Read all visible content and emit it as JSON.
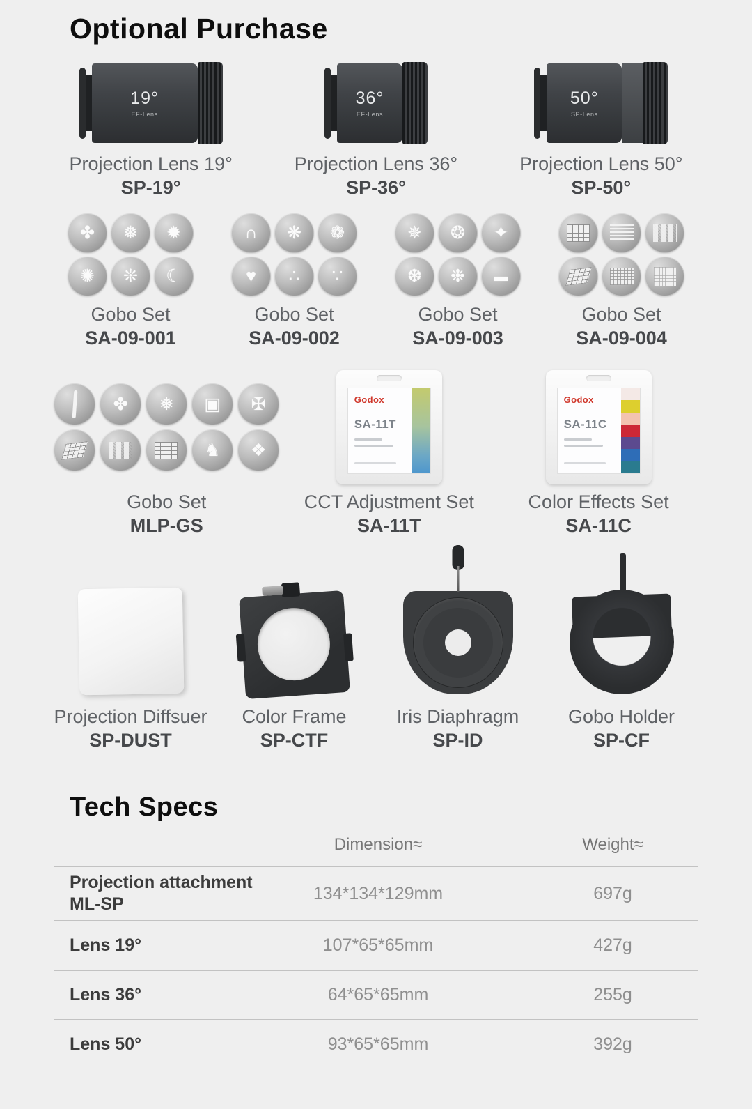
{
  "page": {
    "title": "Optional Purchase",
    "background": "#efefef"
  },
  "lenses": [
    {
      "name": "Projection Lens 19°",
      "model": "SP-19°",
      "barrel_degree": "19°",
      "barrel_text": "EF-Lens"
    },
    {
      "name": "Projection Lens 36°",
      "model": "SP-36°",
      "barrel_degree": "36°",
      "barrel_text": "EF-Lens"
    },
    {
      "name": "Projection Lens 50°",
      "model": "SP-50°",
      "barrel_degree": "50°",
      "barrel_text": "SP-Lens"
    }
  ],
  "gobo_sets": [
    {
      "label": "Gobo Set",
      "model": "SA-09-001",
      "icons": [
        "flames",
        "speckle-ball",
        "star-scatter",
        "starburst",
        "paint-splatter",
        "moon-and-stars"
      ],
      "glyphs": [
        "✤",
        "❅",
        "✹",
        "✺",
        "❊",
        "☾"
      ]
    },
    {
      "label": "Gobo Set",
      "model": "SA-09-002",
      "icons": [
        "rainbow-arcs",
        "firework-burst",
        "firework-spray",
        "hearts",
        "dot-texture",
        "dot-texture-2"
      ],
      "glyphs": [
        "∩",
        "❋",
        "❁",
        "♥",
        "∴",
        "∵"
      ]
    },
    {
      "label": "Gobo Set",
      "model": "SA-09-003",
      "icons": [
        "stars-sky",
        "swirl-stripes",
        "star-flare",
        "dot-cluster",
        "paint-splatter",
        "horizontal-line"
      ],
      "glyphs": [
        "✵",
        "❂",
        "✦",
        "❆",
        "❉",
        "▬"
      ]
    },
    {
      "label": "Gobo Set",
      "model": "SA-09-004",
      "icons": [
        "window-grid",
        "horizontal-blinds",
        "lattice-panels",
        "skewed-grid",
        "striped-panel",
        "fine-mesh"
      ],
      "glyphs": [
        "",
        "",
        "",
        "",
        "",
        ""
      ]
    }
  ],
  "large_gobo_set": {
    "label": "Gobo Set",
    "model": "MLP-GS",
    "icons": [
      "light-bar",
      "flames",
      "leaf-cluster",
      "gift-boxes",
      "chinese-knot",
      "skewed-grid",
      "lattice-panels",
      "window-grid",
      "witch-on-broom",
      "double-happiness"
    ],
    "glyphs": [
      "",
      "✤",
      "❅",
      "▣",
      "✠",
      "",
      "",
      "",
      "♞",
      "❖"
    ]
  },
  "cct_set": {
    "label": "CCT Adjustment Set",
    "model": "SA-11T",
    "brand": "Godox",
    "package_title": "SA-11T"
  },
  "color_set": {
    "label": "Color Effects Set",
    "model": "SA-11C",
    "brand": "Godox",
    "package_title": "SA-11C",
    "strip_colors": [
      "#f4e9e6",
      "#ddcf2e",
      "#f3c3b0",
      "#cd2836",
      "#5c4a8f",
      "#2e6db7",
      "#2a7b8f"
    ]
  },
  "accessories": [
    {
      "label": "Projection Diffsuer",
      "model": "SP-DUST"
    },
    {
      "label": "Color Frame",
      "model": "SP-CTF"
    },
    {
      "label": "Iris Diaphragm",
      "model": "SP-ID"
    },
    {
      "label": "Gobo Holder",
      "model": "SP-CF"
    }
  ],
  "tech_specs": {
    "title": "Tech Specs",
    "columns": {
      "dimension": "Dimension≈",
      "weight": "Weight≈"
    },
    "rows": [
      {
        "name": "Projection attachment",
        "name2": "ML-SP",
        "dimension": "134*134*129mm",
        "weight": "697g"
      },
      {
        "name": "Lens 19°",
        "dimension": "107*65*65mm",
        "weight": "427g"
      },
      {
        "name": "Lens 36°",
        "dimension": "64*65*65mm",
        "weight": "255g"
      },
      {
        "name": "Lens 50°",
        "dimension": "93*65*65mm",
        "weight": "392g"
      }
    ]
  }
}
